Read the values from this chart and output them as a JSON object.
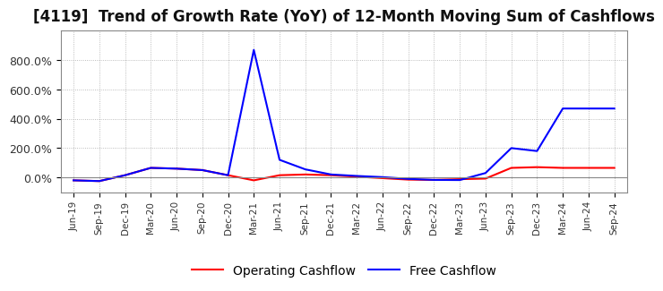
{
  "title": "[4119]  Trend of Growth Rate (YoY) of 12-Month Moving Sum of Cashflows",
  "x_labels": [
    "Jun-19",
    "Sep-19",
    "Dec-19",
    "Mar-20",
    "Jun-20",
    "Sep-20",
    "Dec-20",
    "Mar-21",
    "Jun-21",
    "Sep-21",
    "Dec-21",
    "Mar-22",
    "Jun-22",
    "Sep-22",
    "Dec-22",
    "Mar-23",
    "Jun-23",
    "Sep-23",
    "Dec-23",
    "Mar-24",
    "Jun-24",
    "Sep-24"
  ],
  "operating_cashflow": [
    -20,
    -25,
    15,
    65,
    60,
    50,
    15,
    -20,
    15,
    20,
    15,
    5,
    -5,
    -15,
    -17,
    -12,
    -8,
    65,
    70,
    65,
    65,
    65
  ],
  "free_cashflow": [
    -20,
    -25,
    15,
    65,
    60,
    50,
    15,
    870,
    120,
    55,
    20,
    10,
    2,
    -10,
    -17,
    -18,
    30,
    200,
    180,
    470,
    470,
    470
  ],
  "operating_color": "#ff0000",
  "free_color": "#0000ff",
  "background_color": "#ffffff",
  "plot_bg_color": "#ffffff",
  "grid_color": "#aaaaaa",
  "ylim": [
    -100,
    1000
  ],
  "yticks": [
    0,
    200,
    400,
    600,
    800
  ],
  "ytick_labels": [
    "0.0%",
    "200.0%",
    "400.0%",
    "600.0%",
    "800.0%"
  ],
  "title_fontsize": 12,
  "legend_labels": [
    "Operating Cashflow",
    "Free Cashflow"
  ]
}
